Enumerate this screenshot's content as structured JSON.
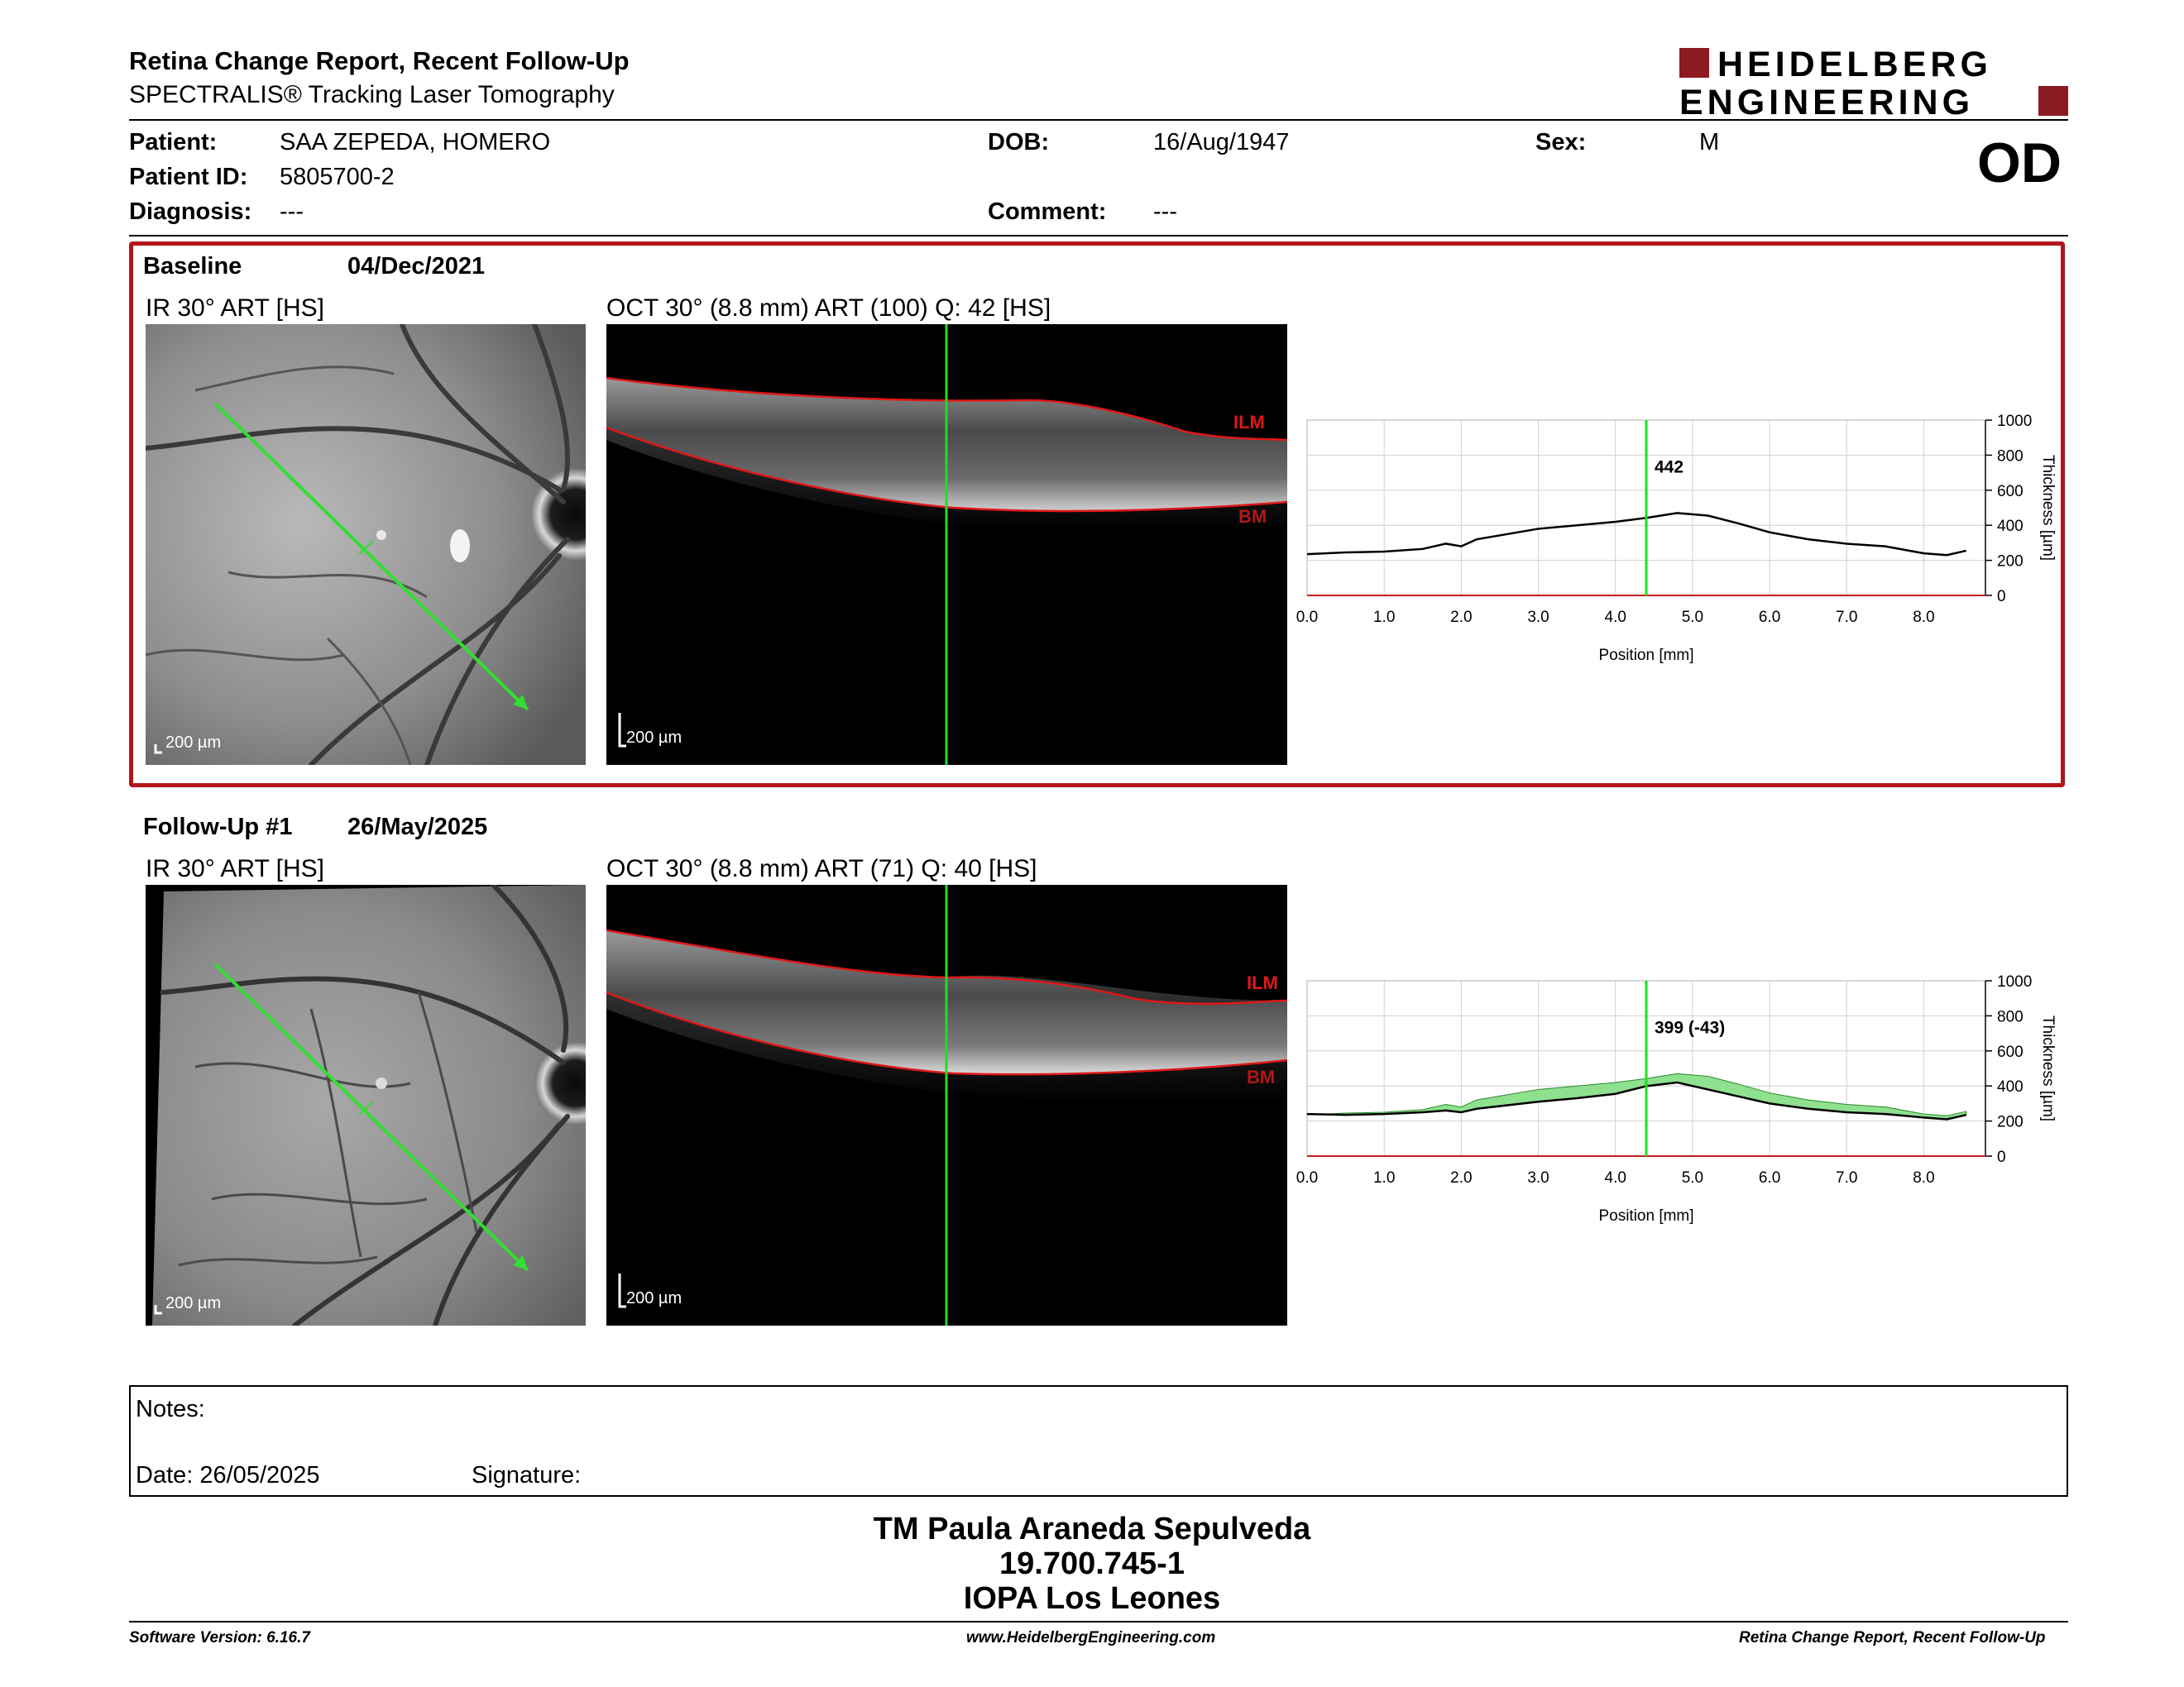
{
  "header": {
    "title": "Retina Change Report, Recent Follow-Up",
    "subtitle": "SPECTRALIS® Tracking Laser Tomography",
    "logo_line1": "HEIDELBERG",
    "logo_line2": "ENGINEERING",
    "brand_color": "#8b1a22"
  },
  "patient": {
    "patient_label": "Patient:",
    "patient_value": "SAA ZEPEDA, HOMERO",
    "id_label": "Patient ID:",
    "id_value": "5805700-2",
    "diagnosis_label": "Diagnosis:",
    "diagnosis_value": "---",
    "dob_label": "DOB:",
    "dob_value": "16/Aug/1947",
    "comment_label": "Comment:",
    "comment_value": "---",
    "sex_label": "Sex:",
    "sex_value": "M",
    "eye": "OD"
  },
  "baseline": {
    "label": "Baseline",
    "date": "04/Dec/2021",
    "ir_caption": "IR 30° ART [HS]",
    "oct_caption": "OCT 30° (8.8 mm) ART (100) Q: 42 [HS]",
    "ir_scale": "200 µm",
    "oct_scale": "200 µm",
    "ilm": "ILM",
    "bm": "BM",
    "highlight_color": "#b3141b"
  },
  "followup": {
    "label": "Follow-Up #1",
    "date": "26/May/2025",
    "ir_caption": "IR 30° ART [HS]",
    "oct_caption": "OCT 30° (8.8 mm) ART (71) Q: 40 [HS]",
    "ir_scale": "200 µm",
    "oct_scale": "200 µm",
    "ilm": "ILM",
    "bm": "BM"
  },
  "chart_data": [
    {
      "type": "line",
      "xlabel": "Position [mm]",
      "ylabel": "Thickness [µm]",
      "xlim": [
        0,
        8.8
      ],
      "ylim": [
        0,
        1000
      ],
      "xticks": [
        "0.0",
        "1.0",
        "2.0",
        "3.0",
        "4.0",
        "5.0",
        "6.0",
        "7.0",
        "8.0"
      ],
      "yticks": [
        "0",
        "200",
        "400",
        "600",
        "800",
        "1000"
      ],
      "cursor_x": 4.4,
      "cursor_label": "442",
      "series": [
        {
          "x": [
            0,
            0.5,
            1.0,
            1.5,
            1.8,
            2.0,
            2.2,
            2.6,
            3.0,
            3.5,
            4.0,
            4.4,
            4.8,
            5.2,
            5.6,
            6.0,
            6.5,
            7.0,
            7.5,
            8.0,
            8.3,
            8.55
          ],
          "values": [
            235,
            245,
            250,
            265,
            295,
            280,
            320,
            350,
            380,
            400,
            420,
            442,
            470,
            455,
            410,
            360,
            320,
            295,
            280,
            240,
            230,
            255
          ]
        }
      ]
    },
    {
      "type": "area",
      "xlabel": "Position [mm]",
      "ylabel": "Thickness [µm]",
      "xlim": [
        0,
        8.8
      ],
      "ylim": [
        0,
        1000
      ],
      "xticks": [
        "0.0",
        "1.0",
        "2.0",
        "3.0",
        "4.0",
        "5.0",
        "6.0",
        "7.0",
        "8.0"
      ],
      "yticks": [
        "0",
        "200",
        "400",
        "600",
        "800",
        "1000"
      ],
      "cursor_x": 4.4,
      "cursor_label": "399 (-43)",
      "fill_color": "#8fe08f",
      "series": [
        {
          "x": [
            0,
            0.5,
            1.0,
            1.5,
            1.8,
            2.0,
            2.2,
            2.6,
            3.0,
            3.5,
            4.0,
            4.4,
            4.8,
            5.2,
            5.6,
            6.0,
            6.5,
            7.0,
            7.5,
            8.0,
            8.3,
            8.55
          ],
          "values": [
            235,
            245,
            250,
            265,
            295,
            280,
            320,
            350,
            380,
            400,
            420,
            442,
            470,
            455,
            410,
            360,
            320,
            295,
            280,
            240,
            230,
            255
          ]
        },
        {
          "x": [
            0,
            0.5,
            1.0,
            1.5,
            1.8,
            2.0,
            2.2,
            2.6,
            3.0,
            3.5,
            4.0,
            4.4,
            4.8,
            5.2,
            5.6,
            6.0,
            6.5,
            7.0,
            7.5,
            8.0,
            8.3,
            8.55
          ],
          "values": [
            240,
            235,
            240,
            250,
            260,
            250,
            270,
            290,
            310,
            330,
            355,
            399,
            420,
            380,
            340,
            300,
            270,
            250,
            240,
            220,
            210,
            235
          ]
        }
      ]
    }
  ],
  "notes": {
    "notes_label": "Notes:",
    "date_text": "Date: 26/05/2025",
    "signature_label": "Signature:"
  },
  "signature": {
    "name": "TM Paula Araneda Sepulveda",
    "id": "19.700.745-1",
    "org": "IOPA Los Leones"
  },
  "footer": {
    "version": "Software Version: 6.16.7",
    "website": "www.HeidelbergEngineering.com",
    "report": "Retina Change Report, Recent Follow-Up"
  }
}
